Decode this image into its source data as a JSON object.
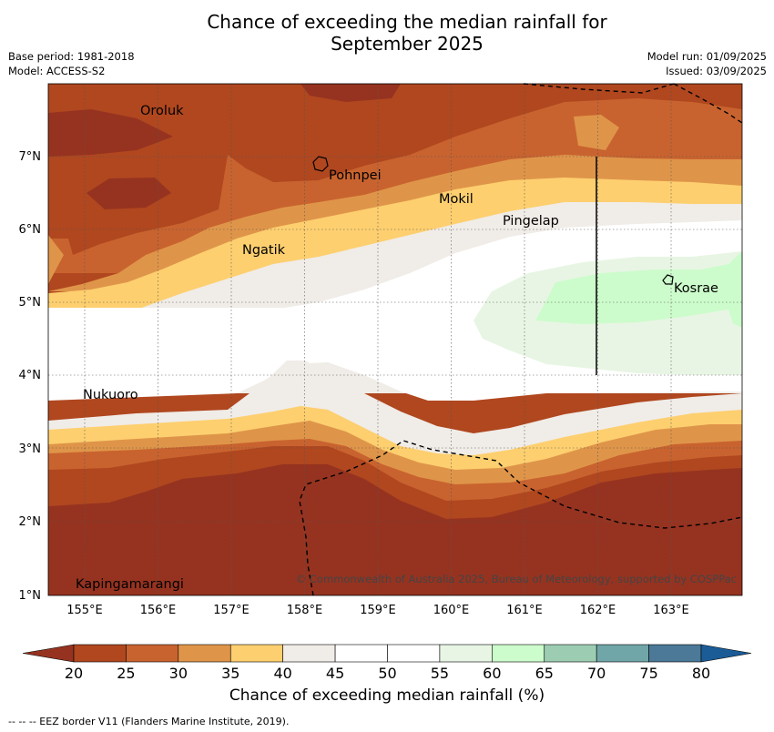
{
  "title": "Chance of exceeding the median rainfall for September 2025",
  "title_line1": "Chance of exceeding the median rainfall for",
  "title_line2": "September 2025",
  "base_period": "Base period: 1981-2018",
  "model": "Model: ACCESS-S2",
  "model_run": "Model run: 01/09/2025",
  "issued": "Issued: 03/09/2025",
  "copyright": "© Commonwealth of Australia 2025, Bureau of Meteorology, supported by COSPPac",
  "lat_ticks": [
    "1°N",
    "2°N",
    "3°N",
    "4°N",
    "5°N",
    "6°N",
    "7°N"
  ],
  "lon_ticks": [
    "155°E",
    "156°E",
    "157°E",
    "158°E",
    "159°E",
    "160°E",
    "161°E",
    "162°E",
    "163°E"
  ],
  "places": [
    "Oroluk",
    "Pohnpei",
    "Mokil",
    "Pingelap",
    "Ngatik",
    "Kosrae",
    "Nukuoro",
    "Kapingamarangi"
  ],
  "colorbar": {
    "label": "Chance of exceeding median rainfall (%)",
    "ticks": [
      "20",
      "25",
      "30",
      "35",
      "40",
      "45",
      "50",
      "55",
      "60",
      "65",
      "70",
      "75",
      "80"
    ],
    "colors": [
      "#963320",
      "#b0471f",
      "#c8632f",
      "#df9549",
      "#fdcf6f",
      "#f0ece7",
      "#ffffff",
      "#ffffff",
      "#e8f5e4",
      "#ccfccb",
      "#9ccdb2",
      "#70a6a7",
      "#4b7997",
      "#1b5c97"
    ]
  },
  "footnote": "-- -- -- EEZ border V11 (Flanders Marine Institute, 2019)."
}
